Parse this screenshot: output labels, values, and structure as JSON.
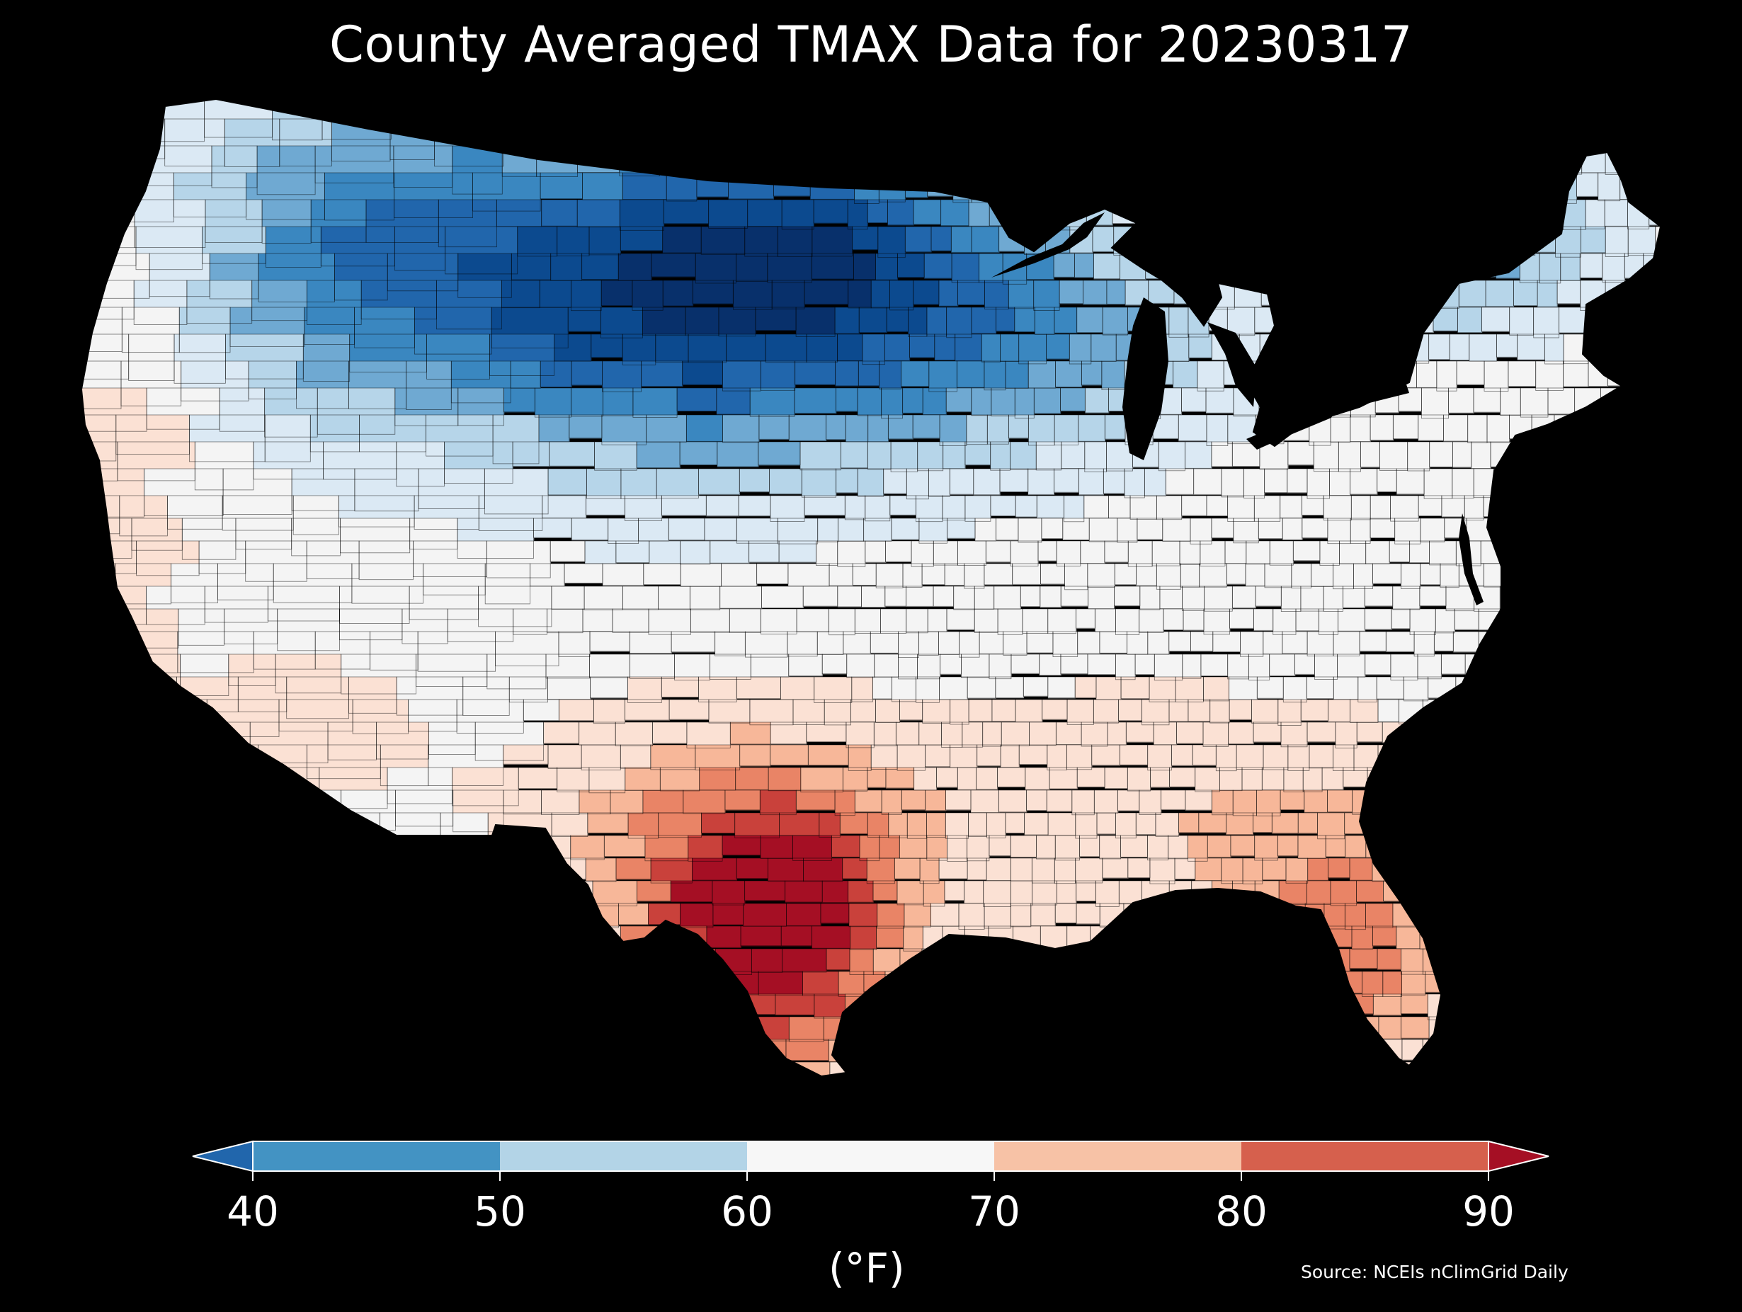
{
  "title": "County Averaged TMAX Data for 20230317",
  "colorbar": {
    "ticks": [
      "40",
      "50",
      "60",
      "70",
      "80",
      "90"
    ],
    "unit": "(°F)",
    "colors": {
      "under": "#2166ac",
      "bin_40_50": "#4393c3",
      "bin_50_60": "#b3d4e7",
      "bin_60_70": "#f7f7f7",
      "bin_70_80": "#f7c2a6",
      "bin_80_90": "#d6604d",
      "over": "#a50f24"
    }
  },
  "source": "Source: NCEIs nClimGrid Daily",
  "map": {
    "region": "Contiguous United States",
    "variable": "TMAX",
    "background": "#000000",
    "county_border_color": "#000000",
    "palette": [
      "#08306b",
      "#0c4a8f",
      "#2166ac",
      "#3a87c0",
      "#6fa9d2",
      "#b6d5e9",
      "#dbe9f4",
      "#f4f4f4",
      "#fbe1d4",
      "#f7b799",
      "#e98466",
      "#c9413b",
      "#a50f24"
    ]
  }
}
